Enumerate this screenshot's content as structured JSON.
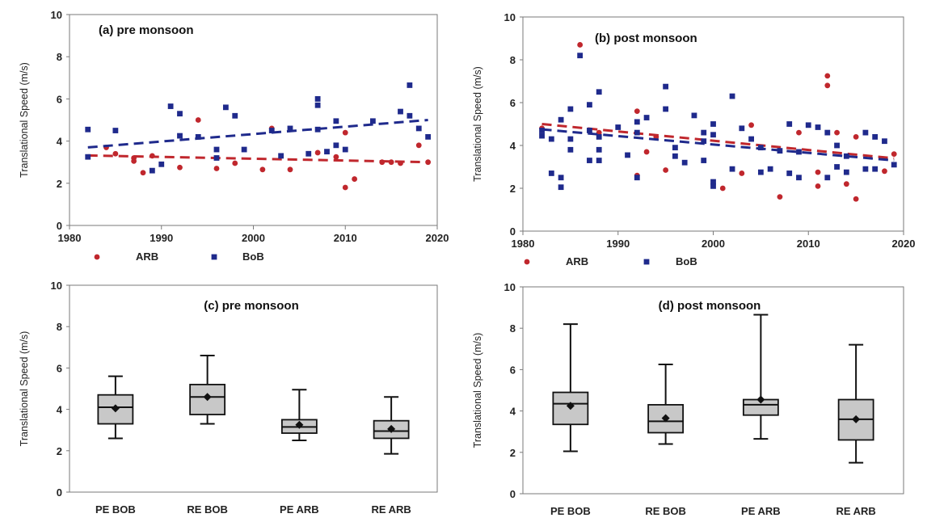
{
  "chart_data": [
    {
      "id": "a",
      "type": "scatter",
      "title": "(a) pre monsoon",
      "xlabel": "",
      "ylabel": "Translational Speed (m/s)",
      "xlim": [
        1980,
        2020
      ],
      "ylim": [
        0,
        10
      ],
      "xticks": [
        1980,
        1990,
        2000,
        2010,
        2020
      ],
      "yticks": [
        0,
        2,
        4,
        6,
        8,
        10
      ],
      "grid": false,
      "legend": "bottom",
      "series": [
        {
          "name": "ARB",
          "color": "#c0272d",
          "marker": "circle",
          "points": [
            [
              1984,
              3.7
            ],
            [
              1985,
              3.4
            ],
            [
              1987,
              3.2
            ],
            [
              1987,
              3.05
            ],
            [
              1988,
              2.5
            ],
            [
              1989,
              3.3
            ],
            [
              1992,
              2.75
            ],
            [
              1994,
              5.0
            ],
            [
              1996,
              2.7
            ],
            [
              1998,
              2.95
            ],
            [
              2001,
              2.65
            ],
            [
              2002,
              4.6
            ],
            [
              2004,
              2.65
            ],
            [
              2007,
              3.45
            ],
            [
              2009,
              3.25
            ],
            [
              2010,
              1.8
            ],
            [
              2010,
              4.4
            ],
            [
              2011,
              2.2
            ],
            [
              2014,
              3.0
            ],
            [
              2015,
              3.0
            ],
            [
              2016,
              2.95
            ],
            [
              2018,
              3.8
            ],
            [
              2019,
              3.0
            ]
          ],
          "trend": [
            [
              1982,
              3.32
            ],
            [
              2019,
              3.0
            ]
          ]
        },
        {
          "name": "BoB",
          "color": "#1f2a8c",
          "marker": "square",
          "points": [
            [
              1982,
              4.55
            ],
            [
              1982,
              3.25
            ],
            [
              1985,
              4.5
            ],
            [
              1989,
              2.6
            ],
            [
              1990,
              2.9
            ],
            [
              1991,
              5.65
            ],
            [
              1992,
              5.3
            ],
            [
              1992,
              4.25
            ],
            [
              1994,
              4.2
            ],
            [
              1996,
              3.6
            ],
            [
              1996,
              3.2
            ],
            [
              1997,
              5.6
            ],
            [
              1998,
              5.2
            ],
            [
              1999,
              3.6
            ],
            [
              2002,
              4.5
            ],
            [
              2003,
              3.3
            ],
            [
              2004,
              4.6
            ],
            [
              2006,
              3.4
            ],
            [
              2007,
              6.0
            ],
            [
              2007,
              5.7
            ],
            [
              2007,
              4.55
            ],
            [
              2008,
              3.5
            ],
            [
              2009,
              3.8
            ],
            [
              2009,
              4.95
            ],
            [
              2010,
              3.6
            ],
            [
              2013,
              4.95
            ],
            [
              2016,
              5.4
            ],
            [
              2017,
              6.65
            ],
            [
              2017,
              5.2
            ],
            [
              2018,
              4.6
            ],
            [
              2019,
              4.2
            ]
          ],
          "trend": [
            [
              1982,
              3.7
            ],
            [
              2019,
              5.0
            ]
          ]
        }
      ]
    },
    {
      "id": "b",
      "type": "scatter",
      "title": "(b) post monsoon",
      "xlabel": "",
      "ylabel": "Translational Speed (m/s)",
      "xlim": [
        1980,
        2020
      ],
      "ylim": [
        0,
        10
      ],
      "xticks": [
        1980,
        1990,
        2000,
        2010,
        2020
      ],
      "yticks": [
        0,
        2,
        4,
        6,
        8,
        10
      ],
      "grid": false,
      "legend": "bottom",
      "series": [
        {
          "name": "ARB",
          "color": "#c0272d",
          "marker": "circle",
          "points": [
            [
              1982,
              4.8
            ],
            [
              1986,
              8.7
            ],
            [
              1988,
              4.6
            ],
            [
              1992,
              5.6
            ],
            [
              1992,
              2.6
            ],
            [
              1993,
              3.7
            ],
            [
              1994,
              4.4
            ],
            [
              1995,
              2.85
            ],
            [
              2001,
              2.0
            ],
            [
              2003,
              2.7
            ],
            [
              2004,
              4.95
            ],
            [
              2007,
              1.6
            ],
            [
              2009,
              4.6
            ],
            [
              2011,
              2.1
            ],
            [
              2011,
              2.75
            ],
            [
              2012,
              7.25
            ],
            [
              2012,
              6.8
            ],
            [
              2013,
              4.6
            ],
            [
              2014,
              2.2
            ],
            [
              2015,
              1.5
            ],
            [
              2015,
              4.4
            ],
            [
              2018,
              2.8
            ],
            [
              2019,
              3.6
            ]
          ],
          "trend": [
            [
              1982,
              5.0
            ],
            [
              2019,
              3.4
            ]
          ]
        },
        {
          "name": "BoB",
          "color": "#1f2a8c",
          "marker": "square",
          "points": [
            [
              1982,
              4.7
            ],
            [
              1982,
              4.45
            ],
            [
              1983,
              4.3
            ],
            [
              1983,
              2.7
            ],
            [
              1984,
              5.2
            ],
            [
              1984,
              2.5
            ],
            [
              1984,
              2.05
            ],
            [
              1985,
              5.7
            ],
            [
              1985,
              4.3
            ],
            [
              1985,
              3.8
            ],
            [
              1986,
              8.2
            ],
            [
              1987,
              5.9
            ],
            [
              1987,
              4.7
            ],
            [
              1987,
              3.3
            ],
            [
              1988,
              6.5
            ],
            [
              1988,
              4.4
            ],
            [
              1988,
              3.8
            ],
            [
              1988,
              3.3
            ],
            [
              1990,
              4.85
            ],
            [
              1991,
              3.55
            ],
            [
              1992,
              5.1
            ],
            [
              1992,
              4.6
            ],
            [
              1992,
              2.5
            ],
            [
              1993,
              5.3
            ],
            [
              1995,
              6.75
            ],
            [
              1995,
              5.7
            ],
            [
              1996,
              3.9
            ],
            [
              1996,
              3.5
            ],
            [
              1997,
              3.2
            ],
            [
              1998,
              5.4
            ],
            [
              1999,
              4.6
            ],
            [
              1999,
              4.2
            ],
            [
              1999,
              3.3
            ],
            [
              2000,
              5.0
            ],
            [
              2000,
              4.5
            ],
            [
              2000,
              2.3
            ],
            [
              2000,
              2.1
            ],
            [
              2002,
              6.3
            ],
            [
              2002,
              2.9
            ],
            [
              2003,
              4.8
            ],
            [
              2004,
              4.3
            ],
            [
              2005,
              3.9
            ],
            [
              2005,
              2.75
            ],
            [
              2006,
              2.9
            ],
            [
              2007,
              3.75
            ],
            [
              2008,
              5.0
            ],
            [
              2008,
              2.7
            ],
            [
              2009,
              3.7
            ],
            [
              2009,
              2.5
            ],
            [
              2010,
              4.95
            ],
            [
              2011,
              4.85
            ],
            [
              2012,
              4.6
            ],
            [
              2012,
              2.5
            ],
            [
              2013,
              4.0
            ],
            [
              2013,
              3.0
            ],
            [
              2014,
              2.75
            ],
            [
              2014,
              3.5
            ],
            [
              2016,
              4.6
            ],
            [
              2016,
              2.9
            ],
            [
              2017,
              4.4
            ],
            [
              2017,
              2.9
            ],
            [
              2018,
              4.2
            ],
            [
              2019,
              3.1
            ]
          ],
          "trend": [
            [
              1982,
              4.75
            ],
            [
              2019,
              3.3
            ]
          ]
        }
      ]
    },
    {
      "id": "c",
      "type": "box",
      "title": "(c) pre monsoon",
      "xlabel": "",
      "ylabel": "Translational Speed (m/s)",
      "ylim": [
        0,
        10
      ],
      "yticks": [
        0,
        2,
        4,
        6,
        8,
        10
      ],
      "grid": false,
      "box_color": "#c8c8c8",
      "categories": [
        "PE BOB",
        "RE BOB",
        "PE ARB",
        "RE ARB"
      ],
      "boxes": [
        {
          "min": 2.6,
          "q1": 3.3,
          "median": 4.1,
          "q3": 4.7,
          "max": 5.6,
          "mean": 4.05
        },
        {
          "min": 3.3,
          "q1": 3.75,
          "median": 4.6,
          "q3": 5.2,
          "max": 6.6,
          "mean": 4.6
        },
        {
          "min": 2.5,
          "q1": 2.85,
          "median": 3.15,
          "q3": 3.5,
          "max": 4.95,
          "mean": 3.25
        },
        {
          "min": 1.85,
          "q1": 2.6,
          "median": 2.95,
          "q3": 3.45,
          "max": 4.6,
          "mean": 3.05
        }
      ]
    },
    {
      "id": "d",
      "type": "box",
      "title": "(d) post monsoon",
      "xlabel": "",
      "ylabel": "Translational Speed (m/s)",
      "ylim": [
        0,
        10
      ],
      "yticks": [
        0,
        2,
        4,
        6,
        8,
        10
      ],
      "grid": false,
      "box_color": "#c8c8c8",
      "categories": [
        "PE BOB",
        "RE BOB",
        "PE ARB",
        "RE ARB"
      ],
      "boxes": [
        {
          "min": 2.05,
          "q1": 3.35,
          "median": 4.35,
          "q3": 4.9,
          "max": 8.2,
          "mean": 4.25
        },
        {
          "min": 2.4,
          "q1": 2.95,
          "median": 3.5,
          "q3": 4.3,
          "max": 6.25,
          "mean": 3.65
        },
        {
          "min": 2.65,
          "q1": 3.8,
          "median": 4.3,
          "q3": 4.55,
          "max": 8.65,
          "mean": 4.55
        },
        {
          "min": 1.5,
          "q1": 2.6,
          "median": 3.6,
          "q3": 4.55,
          "max": 7.2,
          "mean": 3.6
        }
      ]
    }
  ]
}
